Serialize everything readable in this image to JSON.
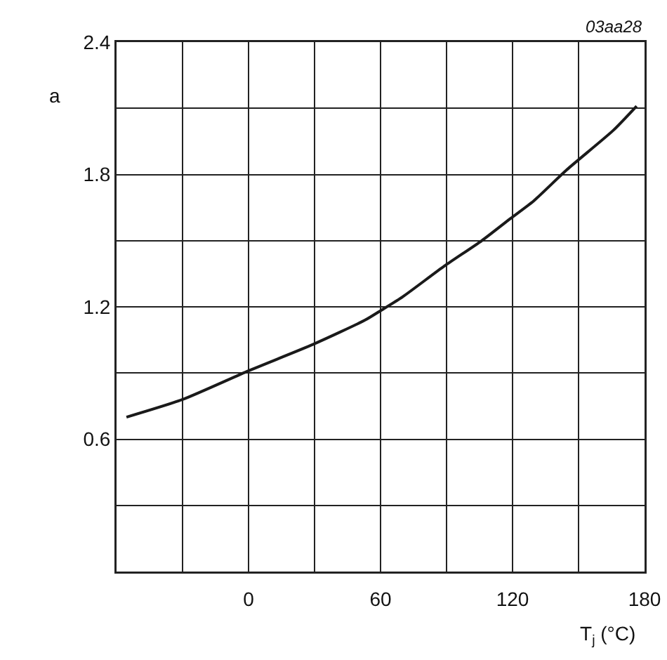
{
  "chart_data": {
    "type": "line",
    "xlabel": "T$_{j}$ (°C)",
    "ylabel": "a",
    "annotations": [
      "03aa28"
    ],
    "x": [
      -55.5,
      -30,
      0,
      29.4,
      53,
      60.4,
      70,
      89,
      106,
      119,
      129.6,
      144.5,
      165.8,
      176.4
    ],
    "series": [
      {
        "color": "#1a1a1a",
        "values": [
          0.7,
          0.78,
          0.91,
          1.03,
          1.14,
          1.185,
          1.245,
          1.385,
          1.5,
          1.6,
          1.68,
          1.82,
          2.0,
          2.11
        ]
      }
    ],
    "xlim": [
      -60,
      180
    ],
    "xticks": [
      {
        "value": -60,
        "label": null
      },
      0,
      60,
      120,
      180
    ],
    "ylim": [
      0,
      2.4
    ],
    "yticks": [
      {
        "value": 0,
        "label": null
      },
      0.6,
      1.2,
      1.8,
      2.4
    ],
    "grid": true,
    "marker": "none",
    "line_style": "solid"
  }
}
